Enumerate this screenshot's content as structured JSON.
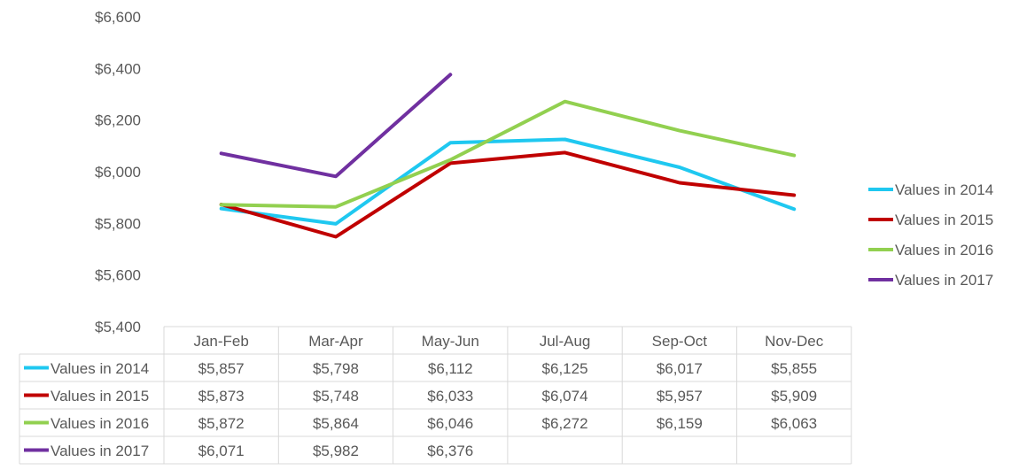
{
  "chart_data": {
    "type": "line",
    "title": "",
    "xlabel": "",
    "ylabel": "",
    "categories": [
      "Jan-Feb",
      "Mar-Apr",
      "May-Jun",
      "Jul-Aug",
      "Sep-Oct",
      "Nov-Dec"
    ],
    "ylim": [
      5400,
      6600
    ],
    "y_ticks": [
      5400,
      5600,
      5800,
      6000,
      6200,
      6400,
      6600
    ],
    "y_tick_labels": [
      "$5,400",
      "$5,600",
      "$5,800",
      "$6,000",
      "$6,200",
      "$6,400",
      "$6,600"
    ],
    "grid": false,
    "legend_position": "right",
    "data_table": true,
    "series": [
      {
        "name": "Values in 2014",
        "color": "#1fc8f0",
        "values": [
          5857,
          5798,
          6112,
          6125,
          6017,
          5855
        ],
        "labels": [
          "$5,857",
          "$5,798",
          "$6,112",
          "$6,125",
          "$6,017",
          "$5,855"
        ]
      },
      {
        "name": "Values in 2015",
        "color": "#c00000",
        "values": [
          5873,
          5748,
          6033,
          6074,
          5957,
          5909
        ],
        "labels": [
          "$5,873",
          "$5,748",
          "$6,033",
          "$6,074",
          "$5,957",
          "$5,909"
        ]
      },
      {
        "name": "Values in 2016",
        "color": "#92d050",
        "values": [
          5872,
          5864,
          6046,
          6272,
          6159,
          6063
        ],
        "labels": [
          "$5,872",
          "$5,864",
          "$6,046",
          "$6,272",
          "$6,159",
          "$6,063"
        ]
      },
      {
        "name": "Values in 2017",
        "color": "#7030a0",
        "values": [
          6071,
          5982,
          6376,
          null,
          null,
          null
        ],
        "labels": [
          "$6,071",
          "$5,982",
          "$6,376",
          "",
          "",
          ""
        ]
      }
    ]
  }
}
